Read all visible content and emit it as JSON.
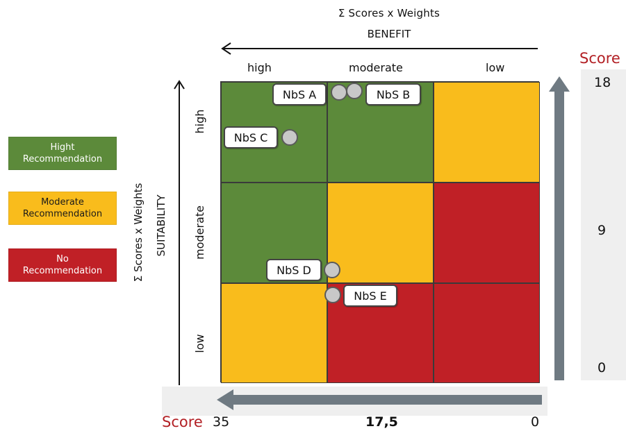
{
  "colors": {
    "high": "#5c8a3a",
    "moderate": "#f9bc1c",
    "no": "#c02026",
    "score_label": "#b21f24",
    "arrow_gray": "#6f7a82"
  },
  "legend": {
    "high": "Hight\nRecommendation",
    "moderate": "Moderate\nRecommendation",
    "no": "No\nRecommendation"
  },
  "benefit_axis": {
    "title": "Σ Scores x Weights",
    "subtitle": "BENEFIT",
    "columns": [
      "high",
      "moderate",
      "low"
    ]
  },
  "suitability_axis": {
    "title": "Σ Scores x Weights",
    "subtitle": "SUITABILITY",
    "rows": [
      "high",
      "moderate",
      "low"
    ]
  },
  "matrix": [
    [
      "high",
      "high",
      "moderate"
    ],
    [
      "high",
      "moderate",
      "no"
    ],
    [
      "moderate",
      "no",
      "no"
    ]
  ],
  "score_right": {
    "label": "Score",
    "ticks": [
      "18",
      "9",
      "0"
    ]
  },
  "score_bottom": {
    "label": "Score",
    "ticks": [
      "35",
      "17,5",
      "0"
    ]
  },
  "points": [
    {
      "label": "NbS A",
      "icon": "circle-marker"
    },
    {
      "label": "NbS B",
      "icon": "circle-marker"
    },
    {
      "label": "NbS C",
      "icon": "circle-marker"
    },
    {
      "label": "NbS D",
      "icon": "circle-marker"
    },
    {
      "label": "NbS E",
      "icon": "circle-marker"
    }
  ]
}
